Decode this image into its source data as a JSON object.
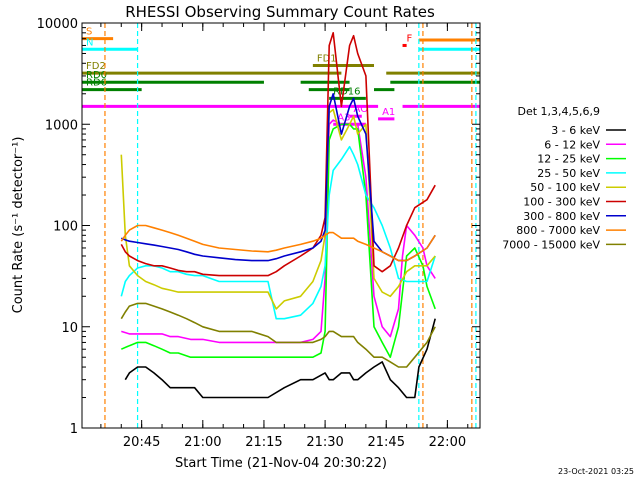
{
  "chart_data": {
    "type": "line",
    "title": "RHESSI Observing Summary Count Rates",
    "xlabel": "Start Time (21-Nov-04 20:30:22)",
    "ylabel": "Count Rate (s⁻¹ detector⁻¹)",
    "y_scale": "log",
    "ylim": [
      1,
      10000
    ],
    "xlim": [
      "20:30:22",
      "22:08:00"
    ],
    "x_ticks": [
      "20:45",
      "21:00",
      "21:15",
      "21:30",
      "21:45",
      "22:00"
    ],
    "y_ticks": [
      "1",
      "10",
      "100",
      "1000",
      "10000"
    ],
    "legend_title": "Det 1,3,4,5,6,9",
    "legend_position": "right",
    "footer": "23-Oct-2021 03:25",
    "series": [
      {
        "name": "3 - 6 keV",
        "color": "#000000",
        "x": [
          "20:41",
          "20:42",
          "20:44",
          "20:46",
          "20:48",
          "20:50",
          "20:52",
          "20:54",
          "20:56",
          "20:58",
          "21:00",
          "21:04",
          "21:08",
          "21:12",
          "21:16",
          "21:20",
          "21:24",
          "21:27",
          "21:30",
          "21:31",
          "21:32",
          "21:34",
          "21:36",
          "21:37",
          "21:38",
          "21:40",
          "21:42",
          "21:44",
          "21:46",
          "21:48",
          "21:50",
          "21:52",
          "21:53",
          "21:55",
          "21:57"
        ],
        "y": [
          3,
          3.5,
          4,
          4,
          3.5,
          3,
          2.5,
          2.5,
          2.5,
          2.5,
          2,
          2,
          2,
          2,
          2,
          2.5,
          3,
          3,
          3.5,
          3,
          3,
          3.5,
          3.5,
          3,
          3,
          3.5,
          4,
          4.5,
          3,
          2.5,
          2,
          2,
          4,
          6,
          12
        ]
      },
      {
        "name": "6 - 12 keV",
        "color": "#ff00ff",
        "x": [
          "20:40",
          "20:42",
          "20:44",
          "20:46",
          "20:48",
          "20:50",
          "20:52",
          "20:54",
          "20:57",
          "21:00",
          "21:04",
          "21:08",
          "21:12",
          "21:16",
          "21:20",
          "21:24",
          "21:27",
          "21:29",
          "21:30",
          "21:31",
          "21:32",
          "21:34",
          "21:36",
          "21:37",
          "21:38",
          "21:40",
          "21:42",
          "21:44",
          "21:46",
          "21:48",
          "21:49",
          "21:50",
          "21:52",
          "21:54",
          "21:55",
          "21:57"
        ],
        "y": [
          9,
          8.5,
          8.5,
          8.5,
          8.5,
          8.5,
          8,
          8,
          7.5,
          7.5,
          7,
          7,
          7,
          7,
          7,
          7,
          7.5,
          9,
          30,
          1000,
          1100,
          1000,
          1000,
          1000,
          1000,
          300,
          20,
          10,
          8,
          15,
          50,
          100,
          80,
          60,
          40,
          30
        ]
      },
      {
        "name": "12 - 25 keV",
        "color": "#00ff00",
        "x": [
          "20:40",
          "20:42",
          "20:44",
          "20:46",
          "20:48",
          "20:50",
          "20:52",
          "20:54",
          "20:57",
          "21:00",
          "21:04",
          "21:08",
          "21:12",
          "21:16",
          "21:20",
          "21:24",
          "21:27",
          "21:29",
          "21:30",
          "21:31",
          "21:32",
          "21:34",
          "21:36",
          "21:37",
          "21:38",
          "21:40",
          "21:42",
          "21:44",
          "21:46",
          "21:48",
          "21:50",
          "21:52",
          "21:54",
          "21:55",
          "21:57"
        ],
        "y": [
          6,
          6.5,
          7,
          7,
          6.5,
          6,
          5.5,
          5.5,
          5,
          5,
          5,
          5,
          5,
          5,
          5,
          5,
          5,
          5.5,
          9,
          700,
          900,
          1000,
          1000,
          900,
          900,
          200,
          10,
          7,
          5,
          10,
          50,
          60,
          40,
          25,
          15
        ]
      },
      {
        "name": "25 - 50 keV",
        "color": "#00ffff",
        "x": [
          "20:40",
          "20:41",
          "20:42",
          "20:44",
          "20:46",
          "20:48",
          "20:50",
          "20:52",
          "20:54",
          "20:56",
          "20:58",
          "21:00",
          "21:04",
          "21:08",
          "21:12",
          "21:16",
          "21:18",
          "21:20",
          "21:24",
          "21:27",
          "21:29",
          "21:30",
          "21:31",
          "21:32",
          "21:34",
          "21:36",
          "21:37",
          "21:38",
          "21:40",
          "21:42",
          "21:44",
          "21:46",
          "21:48",
          "21:50",
          "21:52",
          "21:55",
          "21:57"
        ],
        "y": [
          20,
          28,
          32,
          38,
          40,
          40,
          38,
          35,
          35,
          33,
          32,
          32,
          28,
          28,
          28,
          28,
          12,
          12,
          13,
          17,
          25,
          40,
          200,
          350,
          450,
          600,
          500,
          400,
          200,
          150,
          100,
          60,
          30,
          28,
          28,
          28,
          50
        ]
      },
      {
        "name": "50 - 100 keV",
        "color": "#cccc00",
        "x": [
          "20:40",
          "20:41",
          "20:42",
          "20:44",
          "20:46",
          "20:48",
          "20:50",
          "20:52",
          "20:54",
          "20:56",
          "20:58",
          "21:00",
          "21:04",
          "21:08",
          "21:12",
          "21:16",
          "21:18",
          "21:20",
          "21:24",
          "21:27",
          "21:29",
          "21:30",
          "21:31",
          "21:32",
          "21:34",
          "21:36",
          "21:37",
          "21:38",
          "21:40",
          "21:42",
          "21:44",
          "21:46",
          "21:48",
          "21:50",
          "21:52",
          "21:55",
          "21:57"
        ],
        "y": [
          500,
          80,
          40,
          32,
          28,
          26,
          24,
          23,
          22,
          22,
          22,
          22,
          22,
          22,
          22,
          22,
          15,
          18,
          20,
          28,
          45,
          80,
          1300,
          1400,
          700,
          1000,
          1200,
          800,
          1000,
          30,
          22,
          20,
          25,
          35,
          40,
          40,
          50
        ]
      },
      {
        "name": "100 - 300 keV",
        "color": "#cc0000",
        "x": [
          "20:40",
          "20:41",
          "20:42",
          "20:44",
          "20:46",
          "20:48",
          "20:50",
          "20:52",
          "20:54",
          "20:56",
          "20:58",
          "21:00",
          "21:04",
          "21:08",
          "21:12",
          "21:16",
          "21:18",
          "21:20",
          "21:24",
          "21:27",
          "21:29",
          "21:30",
          "21:31",
          "21:32",
          "21:34",
          "21:36",
          "21:37",
          "21:38",
          "21:40",
          "21:42",
          "21:44",
          "21:46",
          "21:48",
          "21:50",
          "21:52",
          "21:55",
          "21:57"
        ],
        "y": [
          65,
          55,
          50,
          45,
          42,
          40,
          40,
          38,
          36,
          35,
          35,
          33,
          32,
          32,
          32,
          32,
          35,
          40,
          50,
          60,
          80,
          120,
          6000,
          8000,
          1500,
          6000,
          7500,
          5000,
          3000,
          40,
          35,
          40,
          60,
          100,
          150,
          180,
          250
        ]
      },
      {
        "name": "300 - 800 keV",
        "color": "#0000cc",
        "x": [
          "20:40",
          "20:41",
          "20:42",
          "20:44",
          "20:46",
          "20:48",
          "20:50",
          "20:52",
          "20:54",
          "20:56",
          "20:58",
          "21:00",
          "21:04",
          "21:08",
          "21:12",
          "21:16",
          "21:18",
          "21:20",
          "21:24",
          "21:27",
          "21:29",
          "21:30",
          "21:31",
          "21:32",
          "21:34",
          "21:36",
          "21:37",
          "21:38",
          "21:40",
          "21:42",
          "21:44",
          "21:46",
          "21:48",
          "21:50",
          "21:52",
          "21:55",
          "21:57"
        ],
        "y": [
          75,
          72,
          70,
          68,
          66,
          64,
          62,
          60,
          58,
          55,
          52,
          50,
          48,
          46,
          45,
          45,
          47,
          50,
          55,
          60,
          70,
          90,
          1500,
          2000,
          800,
          1500,
          1800,
          1200,
          800,
          70,
          55,
          50,
          45,
          45,
          50,
          60,
          80
        ]
      },
      {
        "name": "800 - 7000 keV",
        "color": "#ff8000",
        "x": [
          "20:40",
          "20:41",
          "20:42",
          "20:44",
          "20:46",
          "20:48",
          "20:50",
          "20:52",
          "20:54",
          "20:56",
          "20:58",
          "21:00",
          "21:04",
          "21:08",
          "21:12",
          "21:16",
          "21:18",
          "21:20",
          "21:24",
          "21:27",
          "21:29",
          "21:30",
          "21:31",
          "21:32",
          "21:34",
          "21:36",
          "21:37",
          "21:38",
          "21:40",
          "21:42",
          "21:44",
          "21:46",
          "21:48",
          "21:50",
          "21:52",
          "21:55",
          "21:57"
        ],
        "y": [
          70,
          80,
          90,
          100,
          100,
          95,
          90,
          85,
          80,
          75,
          70,
          65,
          60,
          58,
          56,
          55,
          57,
          60,
          65,
          70,
          75,
          80,
          85,
          85,
          75,
          75,
          75,
          70,
          65,
          60,
          55,
          50,
          45,
          45,
          50,
          60,
          80
        ]
      },
      {
        "name": "7000 - 15000 keV",
        "color": "#808000",
        "x": [
          "20:40",
          "20:41",
          "20:42",
          "20:44",
          "20:46",
          "20:48",
          "20:50",
          "20:52",
          "20:54",
          "20:56",
          "20:58",
          "21:00",
          "21:04",
          "21:08",
          "21:12",
          "21:16",
          "21:18",
          "21:20",
          "21:24",
          "21:27",
          "21:29",
          "21:30",
          "21:31",
          "21:32",
          "21:34",
          "21:36",
          "21:37",
          "21:38",
          "21:40",
          "21:42",
          "21:44",
          "21:46",
          "21:48",
          "21:50",
          "21:52",
          "21:55",
          "21:57"
        ],
        "y": [
          12,
          14,
          16,
          17,
          17,
          16,
          15,
          14,
          13,
          12,
          11,
          10,
          9,
          9,
          9,
          8,
          7,
          7,
          7,
          7,
          7.5,
          8,
          9,
          9,
          8,
          8,
          8,
          7,
          6,
          5,
          5,
          4.5,
          4,
          4,
          5,
          7,
          10
        ]
      }
    ],
    "state_bars": [
      {
        "label": "S",
        "color": "#ff8000",
        "y": 7000,
        "segments": [
          [
            "20:30:22",
            "20:38"
          ]
        ]
      },
      {
        "label": "N",
        "color": "#00ffff",
        "y": 5500,
        "segments": [
          [
            "20:30:22",
            "20:44"
          ]
        ]
      },
      {
        "label": "",
        "color": "#ff8000",
        "y": 6800,
        "segments": [
          [
            "21:53",
            "22:08"
          ]
        ]
      },
      {
        "label": "",
        "color": "#00ffff",
        "y": 5500,
        "segments": [
          [
            "21:53",
            "22:08"
          ]
        ]
      },
      {
        "label": "FD1",
        "color": "#808000",
        "y": 3800,
        "segments": [
          [
            "21:27",
            "21:42"
          ]
        ]
      },
      {
        "label": "FD2",
        "color": "#808000",
        "y": 3200,
        "segments": [
          [
            "20:30:22",
            "21:34"
          ],
          [
            "21:45",
            "22:08"
          ]
        ]
      },
      {
        "label": "F",
        "color": "#ff0000",
        "y": 6000,
        "segments": [
          [
            "21:49",
            "21:50"
          ]
        ]
      },
      {
        "label": "RD0",
        "color": "#008000",
        "y": 2600,
        "segments": [
          [
            "20:30:22",
            "21:15"
          ],
          [
            "21:24",
            "21:36"
          ],
          [
            "21:46",
            "22:08"
          ]
        ]
      },
      {
        "label": "RD6",
        "color": "#008000",
        "y": 2200,
        "segments": [
          [
            "20:30:22",
            "20:45"
          ],
          [
            "21:26",
            "21:36"
          ],
          [
            "21:42",
            "21:47"
          ]
        ]
      },
      {
        "label": "RD16",
        "color": "#008000",
        "y": 1800,
        "segments": [
          [
            "21:31",
            "21:40"
          ]
        ]
      },
      {
        "label": "",
        "color": "#ff00ff",
        "y": 1500,
        "segments": [
          [
            "20:30:22",
            "21:43"
          ],
          [
            "21:49",
            "22:08"
          ]
        ]
      },
      {
        "label": "AO",
        "color": "#ff00ff",
        "y": 1200,
        "segments": [
          [
            "21:36",
            "21:39"
          ]
        ]
      },
      {
        "label": "A1",
        "color": "#ff00ff",
        "y": 1130,
        "segments": [
          [
            "21:43",
            "21:47"
          ]
        ]
      },
      {
        "label": "A3",
        "color": "#ff00ff",
        "y": 1000,
        "segments": [
          [
            "21:32",
            "21:40"
          ]
        ]
      }
    ],
    "vlines": [
      {
        "x": "20:36",
        "color": "#ff8000"
      },
      {
        "x": "20:44",
        "color": "#00ffff"
      },
      {
        "x": "21:53",
        "color": "#00ffff"
      },
      {
        "x": "21:54",
        "color": "#ff8000"
      },
      {
        "x": "22:06",
        "color": "#ff8000"
      },
      {
        "x": "22:07",
        "color": "#00ffff"
      }
    ]
  }
}
